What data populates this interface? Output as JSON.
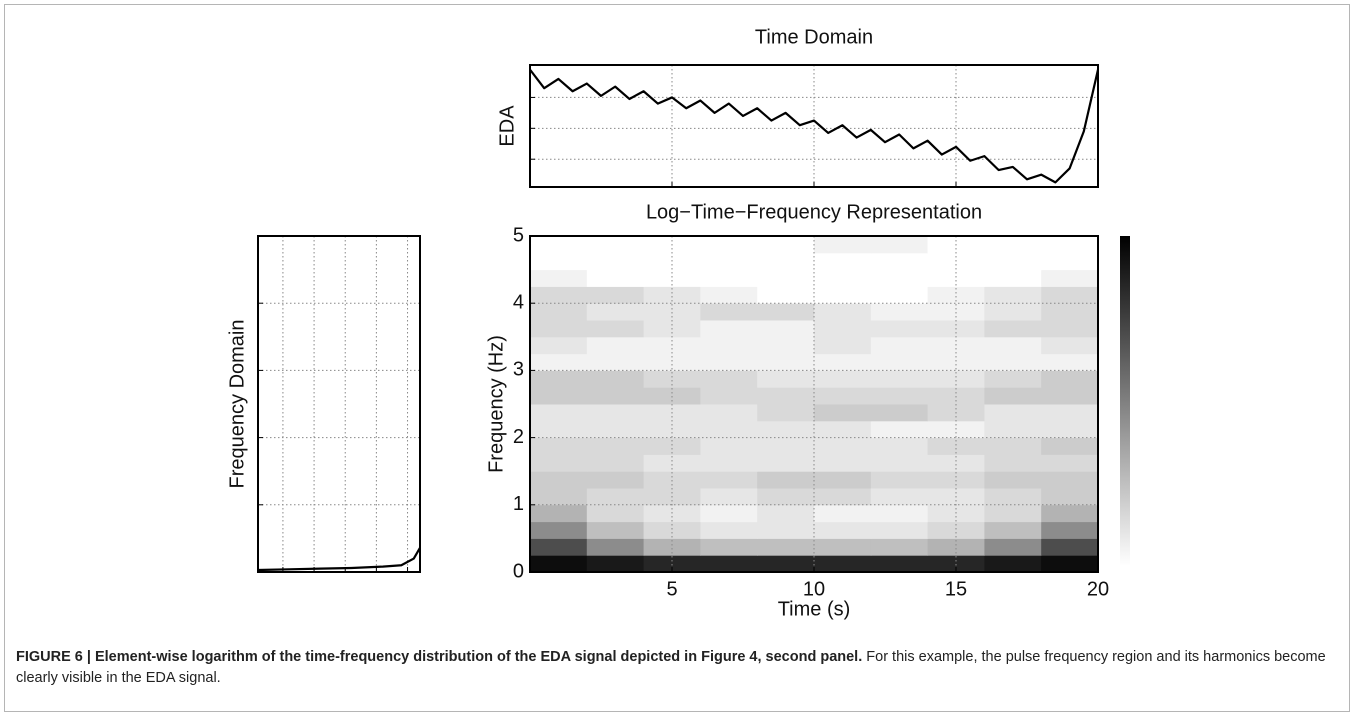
{
  "chart_data": [
    {
      "type": "line",
      "title": "Time Domain",
      "y_label": "EDA",
      "color": "#000000",
      "grid": true,
      "tick_labels": false,
      "x": [
        0,
        0.5,
        1,
        1.5,
        2,
        2.5,
        3,
        3.5,
        4,
        4.5,
        5,
        5.5,
        6,
        6.5,
        7,
        7.5,
        8,
        8.5,
        9,
        9.5,
        10,
        10.5,
        11,
        11.5,
        12,
        12.5,
        13,
        13.5,
        14,
        14.5,
        15,
        15.5,
        16,
        16.5,
        17,
        17.5,
        18,
        18.5,
        19,
        19.5,
        20
      ],
      "values": [
        3.9,
        3.3,
        3.6,
        3.2,
        3.45,
        3.05,
        3.35,
        2.95,
        3.2,
        2.8,
        3.0,
        2.65,
        2.9,
        2.5,
        2.8,
        2.4,
        2.65,
        2.25,
        2.5,
        2.1,
        2.25,
        1.85,
        2.1,
        1.7,
        1.95,
        1.55,
        1.8,
        1.35,
        1.6,
        1.15,
        1.4,
        0.95,
        1.1,
        0.65,
        0.75,
        0.35,
        0.5,
        0.25,
        0.7,
        1.9,
        3.9
      ],
      "xlim": [
        0,
        20
      ],
      "xticks": [
        5,
        10,
        15
      ],
      "ylim": [
        0.1,
        4.05
      ],
      "yticks": [
        1,
        2,
        3
      ]
    },
    {
      "type": "line",
      "y_label": "Frequency Domain",
      "color": "#000000",
      "grid": true,
      "tick_labels": false,
      "x": [
        0,
        1,
        2,
        3,
        4,
        4.6,
        5.0,
        5.2
      ],
      "values": [
        0.03,
        0.04,
        0.05,
        0.06,
        0.08,
        0.1,
        0.2,
        0.36
      ],
      "xlim": [
        0,
        5.2
      ],
      "xticks": [
        0.8,
        1.8,
        2.8,
        3.8,
        4.8
      ],
      "ylim": [
        0,
        5
      ],
      "yticks": [
        1,
        2,
        3,
        4
      ]
    },
    {
      "type": "heatmap",
      "title": "Log−Time−Frequency Representation",
      "x_label": "Time (s)",
      "y_label": "Frequency (Hz)",
      "grid": true,
      "tick_labels": true,
      "colorbar": true,
      "xlim": [
        0,
        20
      ],
      "xticks": [
        5,
        10,
        15,
        20
      ],
      "ylim": [
        0,
        5
      ],
      "yticks": [
        0,
        1,
        2,
        3,
        4,
        5
      ],
      "zlim": [
        0,
        1
      ],
      "x_bins": [
        0,
        2,
        4,
        6,
        8,
        10,
        12,
        14,
        16,
        18,
        20
      ],
      "y_bins": [
        0,
        0.25,
        0.5,
        0.75,
        1,
        1.25,
        1.5,
        1.75,
        2,
        2.25,
        2.5,
        2.75,
        3,
        3.25,
        3.5,
        3.75,
        4,
        4.25,
        4.5,
        4.75,
        5
      ],
      "values": [
        [
          0.95,
          0.9,
          0.85,
          0.85,
          0.85,
          0.85,
          0.85,
          0.85,
          0.9,
          0.95
        ],
        [
          0.7,
          0.45,
          0.3,
          0.25,
          0.25,
          0.25,
          0.25,
          0.3,
          0.45,
          0.7
        ],
        [
          0.45,
          0.25,
          0.15,
          0.1,
          0.1,
          0.1,
          0.1,
          0.15,
          0.25,
          0.45
        ],
        [
          0.3,
          0.15,
          0.1,
          0.05,
          0.1,
          0.05,
          0.05,
          0.1,
          0.15,
          0.3
        ],
        [
          0.2,
          0.15,
          0.15,
          0.1,
          0.15,
          0.15,
          0.1,
          0.1,
          0.15,
          0.2
        ],
        [
          0.2,
          0.2,
          0.15,
          0.15,
          0.2,
          0.2,
          0.15,
          0.15,
          0.2,
          0.2
        ],
        [
          0.15,
          0.15,
          0.1,
          0.1,
          0.1,
          0.1,
          0.1,
          0.1,
          0.15,
          0.15
        ],
        [
          0.15,
          0.15,
          0.15,
          0.1,
          0.1,
          0.1,
          0.1,
          0.15,
          0.15,
          0.2
        ],
        [
          0.1,
          0.1,
          0.1,
          0.1,
          0.1,
          0.1,
          0.05,
          0.05,
          0.1,
          0.1
        ],
        [
          0.1,
          0.1,
          0.1,
          0.1,
          0.15,
          0.2,
          0.2,
          0.15,
          0.1,
          0.1
        ],
        [
          0.2,
          0.2,
          0.2,
          0.15,
          0.15,
          0.15,
          0.15,
          0.15,
          0.2,
          0.2
        ],
        [
          0.2,
          0.2,
          0.15,
          0.15,
          0.1,
          0.1,
          0.1,
          0.1,
          0.15,
          0.2
        ],
        [
          0.05,
          0.05,
          0.05,
          0.05,
          0.05,
          0.05,
          0.05,
          0.05,
          0.05,
          0.05
        ],
        [
          0.1,
          0.05,
          0.05,
          0.05,
          0.05,
          0.1,
          0.05,
          0.05,
          0.05,
          0.1
        ],
        [
          0.15,
          0.15,
          0.1,
          0.05,
          0.05,
          0.1,
          0.1,
          0.1,
          0.15,
          0.15
        ],
        [
          0.15,
          0.1,
          0.1,
          0.15,
          0.15,
          0.1,
          0.05,
          0.05,
          0.1,
          0.15
        ],
        [
          0.15,
          0.15,
          0.1,
          0.05,
          0,
          0,
          0,
          0.05,
          0.1,
          0.15
        ],
        [
          0.05,
          0,
          0,
          0,
          0,
          0,
          0,
          0,
          0,
          0.05
        ],
        [
          0,
          0,
          0,
          0,
          0,
          0,
          0,
          0,
          0,
          0
        ],
        [
          0,
          0,
          0,
          0,
          0,
          0.05,
          0.05,
          0,
          0,
          0
        ]
      ]
    }
  ],
  "caption": {
    "bold": "FIGURE 6 | Element-wise logarithm of the time-frequency distribution of the EDA signal depicted in Figure 4, second panel.",
    "text": "For this example, the pulse frequency region and its harmonics become clearly visible in the EDA signal."
  }
}
